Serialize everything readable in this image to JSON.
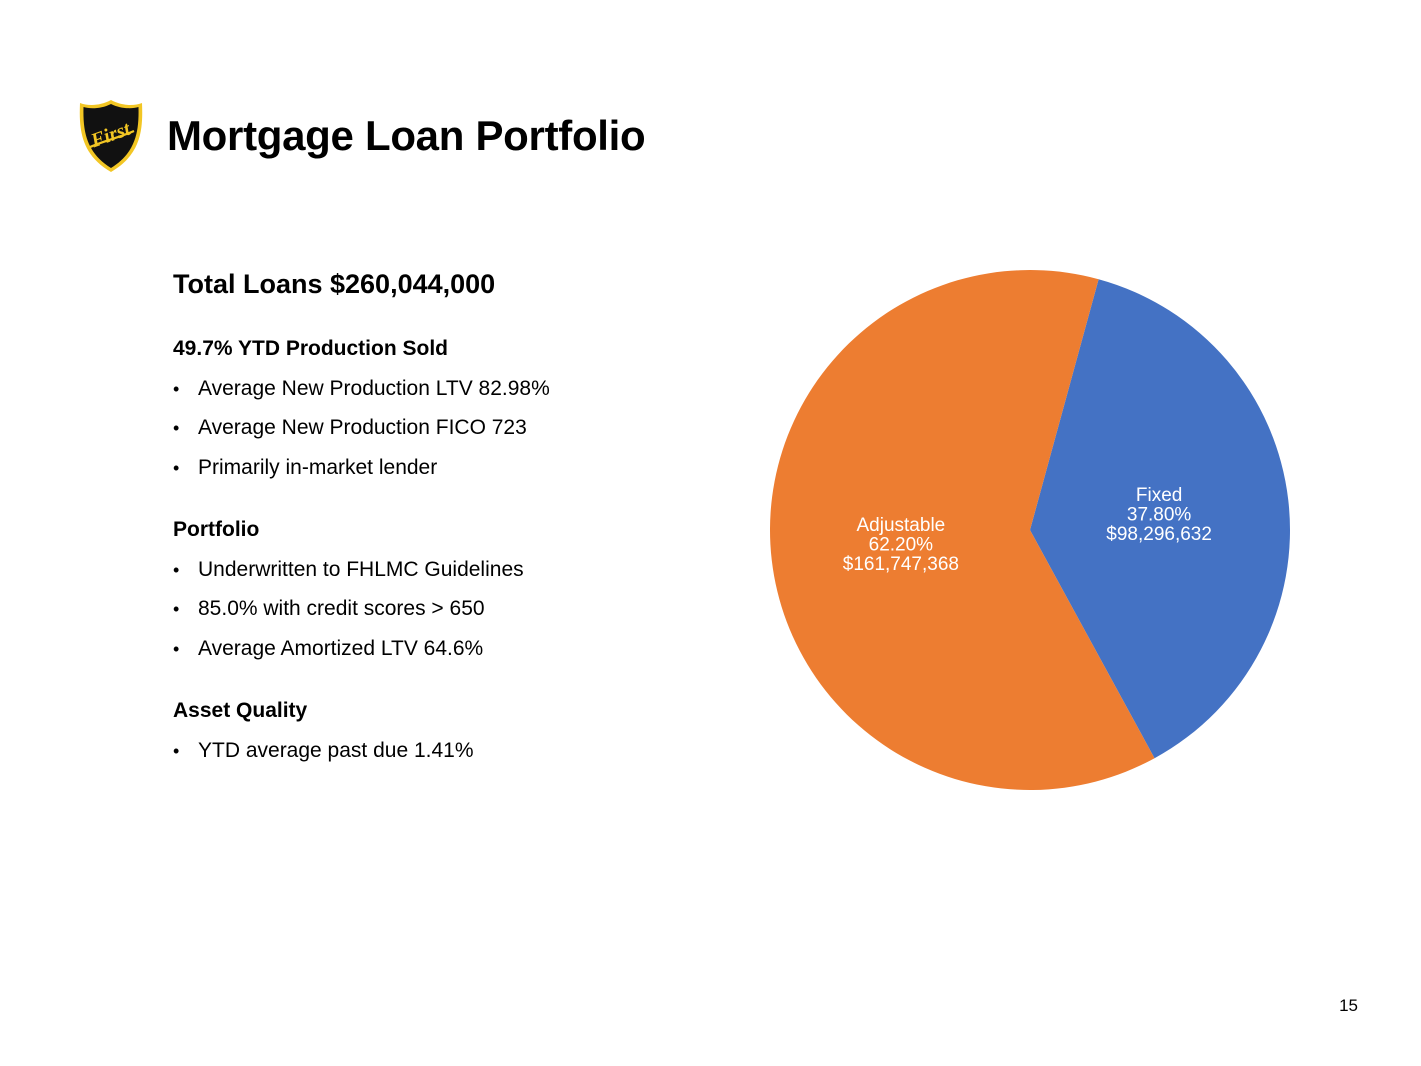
{
  "slide": {
    "title": "Mortgage Loan Portfolio",
    "logo_text": "First",
    "page_number": "15"
  },
  "left": {
    "total_loans": "Total Loans $260,044,000",
    "sections": [
      {
        "heading": "49.7% YTD Production Sold",
        "bullets": [
          "Average New Production LTV 82.98%",
          "Average New Production FICO 723",
          "Primarily in-market lender"
        ]
      },
      {
        "heading": "Portfolio",
        "bullets": [
          "Underwritten to FHLMC Guidelines",
          "85.0% with credit scores > 650",
          "Average Amortized LTV 64.6%"
        ]
      },
      {
        "heading": "Asset Quality",
        "bullets": [
          "YTD average past due 1.41%"
        ]
      }
    ]
  },
  "chart_data": {
    "type": "pie",
    "title": "",
    "start_angle_deg": 15.3,
    "slices": [
      {
        "label": "Fixed",
        "percent": "37.80%",
        "amount": "$98,296,632",
        "value": 98296632,
        "share": 0.378,
        "color": "#4472C4"
      },
      {
        "label": "Adjustable",
        "percent": "62.20%",
        "amount": "$161,747,368",
        "value": 161747368,
        "share": 0.622,
        "color": "#ED7D31"
      }
    ],
    "label_color": "#ffffff",
    "legend": "none"
  },
  "colors": {
    "logo_shield": "#111111",
    "logo_gold": "#F2C624"
  }
}
